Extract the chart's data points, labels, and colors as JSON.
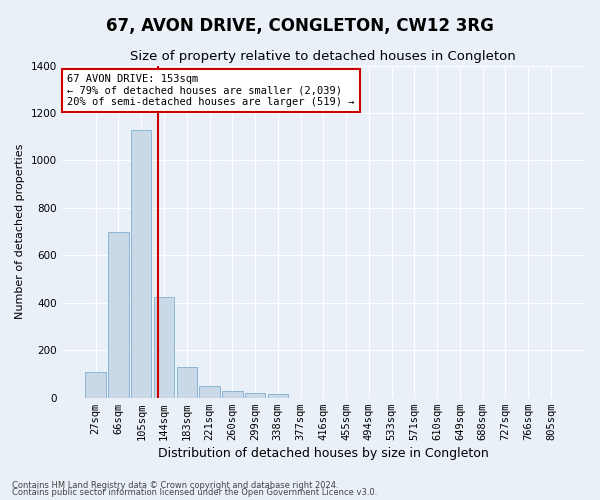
{
  "title": "67, AVON DRIVE, CONGLETON, CW12 3RG",
  "subtitle": "Size of property relative to detached houses in Congleton",
  "xlabel": "Distribution of detached houses by size in Congleton",
  "ylabel": "Number of detached properties",
  "footnote1": "Contains HM Land Registry data © Crown copyright and database right 2024.",
  "footnote2": "Contains public sector information licensed under the Open Government Licence v3.0.",
  "bar_labels": [
    "27sqm",
    "66sqm",
    "105sqm",
    "144sqm",
    "183sqm",
    "221sqm",
    "260sqm",
    "299sqm",
    "338sqm",
    "377sqm",
    "416sqm",
    "455sqm",
    "494sqm",
    "533sqm",
    "571sqm",
    "610sqm",
    "649sqm",
    "688sqm",
    "727sqm",
    "766sqm",
    "805sqm"
  ],
  "bar_values": [
    110,
    700,
    1130,
    425,
    130,
    50,
    30,
    20,
    15,
    0,
    0,
    0,
    0,
    0,
    0,
    0,
    0,
    0,
    0,
    0,
    0
  ],
  "bar_color": "#c9d9e8",
  "bar_edgecolor": "#7fafd0",
  "bar_width": 0.9,
  "vline_color": "#cc0000",
  "ylim": [
    0,
    1400
  ],
  "yticks": [
    0,
    200,
    400,
    600,
    800,
    1000,
    1200,
    1400
  ],
  "annotation_text": "67 AVON DRIVE: 153sqm\n← 79% of detached houses are smaller (2,039)\n20% of semi-detached houses are larger (519) →",
  "annotation_box_color": "#ffffff",
  "annotation_box_edgecolor": "#cc0000",
  "bg_color": "#eaf0f8",
  "plot_bg_color": "#eaf0f8",
  "grid_color": "#ffffff",
  "title_fontsize": 12,
  "subtitle_fontsize": 9.5,
  "tick_fontsize": 7.5,
  "ylabel_fontsize": 8,
  "xlabel_fontsize": 9
}
